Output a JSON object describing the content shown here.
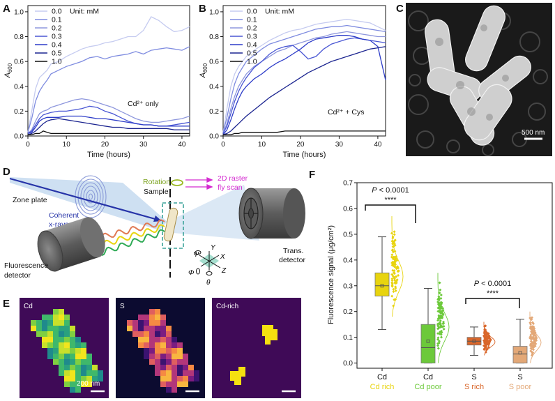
{
  "panels": {
    "A": {
      "label": "A",
      "annotation": "Cd²⁺ only"
    },
    "B": {
      "label": "B",
      "annotation": "Cd²⁺ + Cys"
    },
    "C": {
      "label": "C",
      "scale_bar": "500 nm"
    },
    "D": {
      "label": "D",
      "zone_plate": "Zone plate",
      "xray_line1": "Coherent",
      "xray_line2": "x-rays",
      "sample": "Sample",
      "rotation": "Rotation",
      "raster_line1": "2D raster",
      "raster_line2": "fly scan",
      "trans_line1": "Trans.",
      "trans_line2": "detector",
      "fluor_line1": "Fluorescence",
      "fluor_line2": "detector",
      "axes": {
        "psi": "Ψ",
        "y": "Y",
        "x": "X",
        "z": "Z",
        "phi": "Φ",
        "theta": "θ"
      }
    },
    "E": {
      "label": "E",
      "maps": [
        {
          "name": "Cd"
        },
        {
          "name": "S"
        },
        {
          "name": "Cd-rich"
        }
      ],
      "scale_bar": "200 nm"
    },
    "F": {
      "label": "F",
      "p_value_1": "< 0.0001",
      "p_value_2": "< 0.0001",
      "p_letter": "P",
      "stars": "****"
    }
  },
  "colors": {
    "cd_rich": "#e8d40f",
    "cd_poor": "#6cc93a",
    "s_rich": "#d9662a",
    "s_poor": "#e3a877",
    "map_bg": "#3f0a57",
    "raster": "#d42ad0",
    "xray": "#2633a8"
  },
  "chart_data": [
    {
      "panel": "A",
      "type": "line",
      "xlabel": "Time (hours)",
      "ylabel": "A600",
      "ylabel_main": "A",
      "ylabel_sub": "600",
      "xlim": [
        0,
        42
      ],
      "ylim": [
        0,
        1.05
      ],
      "xticks": [
        0,
        10,
        20,
        30,
        40
      ],
      "yticks": [
        0.0,
        0.2,
        0.4,
        0.6,
        0.8,
        1.0
      ],
      "legend_title": "Unit: mM",
      "legend_position": "top-left",
      "x": [
        0,
        1,
        2,
        3,
        4,
        5,
        6,
        8,
        10,
        12,
        14,
        16,
        18,
        20,
        22,
        24,
        26,
        28,
        30,
        32,
        34,
        36,
        38,
        40,
        42
      ],
      "series": [
        {
          "name": "0.0",
          "color": "#c5cbf0",
          "values": [
            0.03,
            0.2,
            0.38,
            0.47,
            0.5,
            0.53,
            0.58,
            0.6,
            0.64,
            0.67,
            0.7,
            0.72,
            0.73,
            0.75,
            0.76,
            0.78,
            0.8,
            0.8,
            0.85,
            0.96,
            0.93,
            0.88,
            0.84,
            0.85,
            0.88
          ]
        },
        {
          "name": "0.1",
          "color": "#7f8ce0",
          "values": [
            0.03,
            0.14,
            0.28,
            0.36,
            0.41,
            0.45,
            0.5,
            0.53,
            0.56,
            0.58,
            0.6,
            0.63,
            0.64,
            0.62,
            0.64,
            0.65,
            0.66,
            0.68,
            0.66,
            0.69,
            0.7,
            0.71,
            0.7,
            0.69,
            0.72
          ]
        },
        {
          "name": "0.2",
          "color": "#8e97dd",
          "values": [
            0.02,
            0.05,
            0.12,
            0.18,
            0.2,
            0.21,
            0.23,
            0.25,
            0.27,
            0.29,
            0.3,
            0.29,
            0.27,
            0.25,
            0.23,
            0.2,
            0.17,
            0.14,
            0.12,
            0.11,
            0.11,
            0.12,
            0.13,
            0.14,
            0.16
          ]
        },
        {
          "name": "0.3",
          "color": "#4a57d4",
          "values": [
            0.02,
            0.04,
            0.09,
            0.14,
            0.17,
            0.18,
            0.19,
            0.2,
            0.2,
            0.21,
            0.22,
            0.24,
            0.23,
            0.2,
            0.18,
            0.15,
            0.12,
            0.1,
            0.09,
            0.09,
            0.08,
            0.08,
            0.09,
            0.1,
            0.11
          ]
        },
        {
          "name": "0.4",
          "color": "#2d3cc8",
          "values": [
            0.02,
            0.03,
            0.07,
            0.12,
            0.14,
            0.15,
            0.15,
            0.15,
            0.16,
            0.16,
            0.16,
            0.15,
            0.14,
            0.14,
            0.13,
            0.12,
            0.11,
            0.1,
            0.09,
            0.09,
            0.08,
            0.08,
            0.08,
            0.08,
            0.08
          ]
        },
        {
          "name": "0.5",
          "color": "#1c2590",
          "values": [
            0.01,
            0.02,
            0.04,
            0.07,
            0.1,
            0.12,
            0.13,
            0.14,
            0.13,
            0.12,
            0.11,
            0.1,
            0.09,
            0.08,
            0.07,
            0.07,
            0.06,
            0.06,
            0.06,
            0.06,
            0.06,
            0.06,
            0.05,
            0.05,
            0.05
          ]
        },
        {
          "name": "1.0",
          "color": "#111111",
          "values": [
            0.01,
            0.01,
            0.02,
            0.02,
            0.04,
            0.03,
            0.02,
            0.02,
            0.02,
            0.02,
            0.02,
            0.02,
            0.02,
            0.02,
            0.02,
            0.02,
            0.02,
            0.02,
            0.02,
            0.02,
            0.02,
            0.02,
            0.02,
            0.02,
            0.02
          ]
        }
      ]
    },
    {
      "panel": "B",
      "type": "line",
      "xlabel": "Time (hours)",
      "ylabel": "A600",
      "ylabel_main": "A",
      "ylabel_sub": "600",
      "xlim": [
        0,
        42
      ],
      "ylim": [
        0,
        1.05
      ],
      "xticks": [
        0,
        10,
        20,
        30,
        40
      ],
      "yticks": [
        0.0,
        0.2,
        0.4,
        0.6,
        0.8,
        1.0
      ],
      "legend_title": "Unit: mM",
      "legend_position": "top-left",
      "x": [
        0,
        1,
        2,
        3,
        4,
        5,
        6,
        8,
        10,
        12,
        14,
        16,
        18,
        20,
        22,
        24,
        26,
        28,
        30,
        32,
        34,
        36,
        38,
        40,
        42
      ],
      "series": [
        {
          "name": "0.0",
          "color": "#c5cbf0",
          "values": [
            0.03,
            0.22,
            0.4,
            0.5,
            0.56,
            0.6,
            0.64,
            0.69,
            0.73,
            0.77,
            0.8,
            0.83,
            0.85,
            0.86,
            0.88,
            0.9,
            0.91,
            0.92,
            0.93,
            0.94,
            0.93,
            0.92,
            0.91,
            0.88,
            0.85
          ]
        },
        {
          "name": "0.1",
          "color": "#7f8ce0",
          "values": [
            0.03,
            0.15,
            0.3,
            0.42,
            0.5,
            0.55,
            0.6,
            0.65,
            0.7,
            0.74,
            0.76,
            0.78,
            0.8,
            0.82,
            0.84,
            0.86,
            0.87,
            0.88,
            0.88,
            0.89,
            0.88,
            0.87,
            0.86,
            0.85,
            0.84
          ]
        },
        {
          "name": "0.2",
          "color": "#8e97dd",
          "values": [
            0.02,
            0.1,
            0.22,
            0.32,
            0.4,
            0.45,
            0.5,
            0.56,
            0.6,
            0.64,
            0.68,
            0.7,
            0.73,
            0.75,
            0.77,
            0.79,
            0.8,
            0.82,
            0.83,
            0.84,
            0.83,
            0.82,
            0.81,
            0.8,
            0.8
          ]
        },
        {
          "name": "0.3",
          "color": "#4a57d4",
          "values": [
            0.02,
            0.08,
            0.18,
            0.28,
            0.36,
            0.42,
            0.47,
            0.55,
            0.6,
            0.66,
            0.7,
            0.72,
            0.73,
            0.68,
            0.62,
            0.64,
            0.7,
            0.74,
            0.76,
            0.78,
            0.79,
            0.78,
            0.77,
            0.76,
            0.75
          ]
        },
        {
          "name": "0.4",
          "color": "#2d3cc8",
          "values": [
            0.01,
            0.05,
            0.13,
            0.22,
            0.3,
            0.36,
            0.4,
            0.46,
            0.5,
            0.55,
            0.59,
            0.62,
            0.66,
            0.7,
            0.75,
            0.78,
            0.79,
            0.8,
            0.81,
            0.81,
            0.8,
            0.78,
            0.77,
            0.72,
            0.45
          ]
        },
        {
          "name": "0.5",
          "color": "#1c2590",
          "values": [
            0.01,
            0.02,
            0.04,
            0.07,
            0.1,
            0.13,
            0.16,
            0.21,
            0.26,
            0.31,
            0.35,
            0.39,
            0.43,
            0.47,
            0.51,
            0.54,
            0.57,
            0.6,
            0.62,
            0.64,
            0.66,
            0.68,
            0.7,
            0.71,
            0.72
          ]
        },
        {
          "name": "1.0",
          "color": "#111111",
          "values": [
            0.01,
            0.01,
            0.01,
            0.02,
            0.02,
            0.03,
            0.03,
            0.03,
            0.03,
            0.03,
            0.03,
            0.04,
            0.04,
            0.04,
            0.04,
            0.04,
            0.04,
            0.04,
            0.04,
            0.04,
            0.04,
            0.04,
            0.04,
            0.04,
            0.04
          ]
        }
      ]
    },
    {
      "panel": "F",
      "type": "box",
      "ylabel": "Fluorescence signal (μg/cm²)",
      "ylim": [
        -0.02,
        0.7
      ],
      "yticks": [
        0.0,
        0.1,
        0.2,
        0.3,
        0.4,
        0.5,
        0.6,
        0.7
      ],
      "categories": [
        {
          "element": "Cd",
          "group": "Cd rich",
          "color": "#e8d40f",
          "min": 0.13,
          "q1": 0.26,
          "median": 0.3,
          "mean": 0.3,
          "q3": 0.35,
          "max": 0.49,
          "points_range": [
            0.18,
            0.57
          ]
        },
        {
          "element": "Cd",
          "group": "Cd poor",
          "color": "#6cc93a",
          "min": 0.0,
          "q1": 0.0,
          "median": 0.06,
          "mean": 0.085,
          "q3": 0.15,
          "max": 0.29,
          "points_range": [
            0.0,
            0.35
          ]
        },
        {
          "element": "S",
          "group": "S rich",
          "color": "#d9662a",
          "min": 0.03,
          "q1": 0.07,
          "median": 0.085,
          "mean": 0.085,
          "q3": 0.1,
          "max": 0.14,
          "points_range": [
            0.03,
            0.16
          ]
        },
        {
          "element": "S",
          "group": "S poor",
          "color": "#e3a877",
          "min": 0.0,
          "q1": 0.0,
          "median": 0.035,
          "mean": 0.04,
          "q3": 0.065,
          "max": 0.17,
          "points_range": [
            0.0,
            0.2
          ]
        }
      ]
    }
  ]
}
